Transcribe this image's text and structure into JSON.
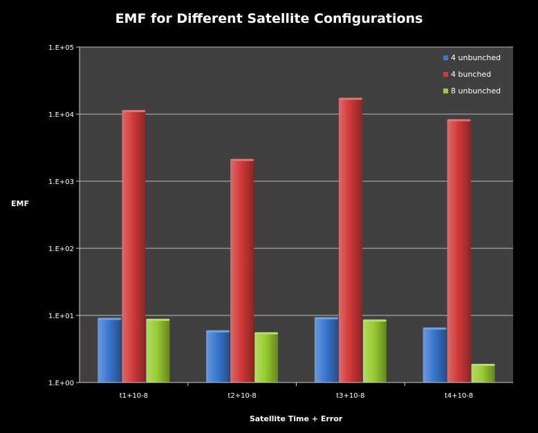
{
  "chart_data": {
    "type": "bar",
    "title": "EMF for Different Satellite Configurations",
    "xlabel": "Satellite Time + Error",
    "ylabel": "EMF",
    "yscale": "log",
    "ylim": [
      1,
      100000
    ],
    "yticks": [
      1,
      10,
      100,
      1000,
      10000,
      100000
    ],
    "ytick_labels": [
      "1.E+00",
      "1.E+01",
      "1.E+02",
      "1.E+03",
      "1.E+04",
      "1.E+05"
    ],
    "categories": [
      "t1+10-8",
      "t2+10-8",
      "t3+10-8",
      "t4+10-8"
    ],
    "series": [
      {
        "name": "4 unbunched",
        "color": "#3a78d0",
        "values": [
          9.2,
          6.0,
          9.4,
          6.6
        ]
      },
      {
        "name": "4 bunched",
        "color": "#d23a3a",
        "values": [
          11500,
          2150,
          17500,
          8400
        ]
      },
      {
        "name": "8 unbunched",
        "color": "#9acd32",
        "values": [
          8.9,
          5.6,
          8.7,
          1.9
        ]
      }
    ],
    "grid": true,
    "legend_position": "top-right",
    "plot_background": "#404040",
    "page_background": "#000000"
  }
}
